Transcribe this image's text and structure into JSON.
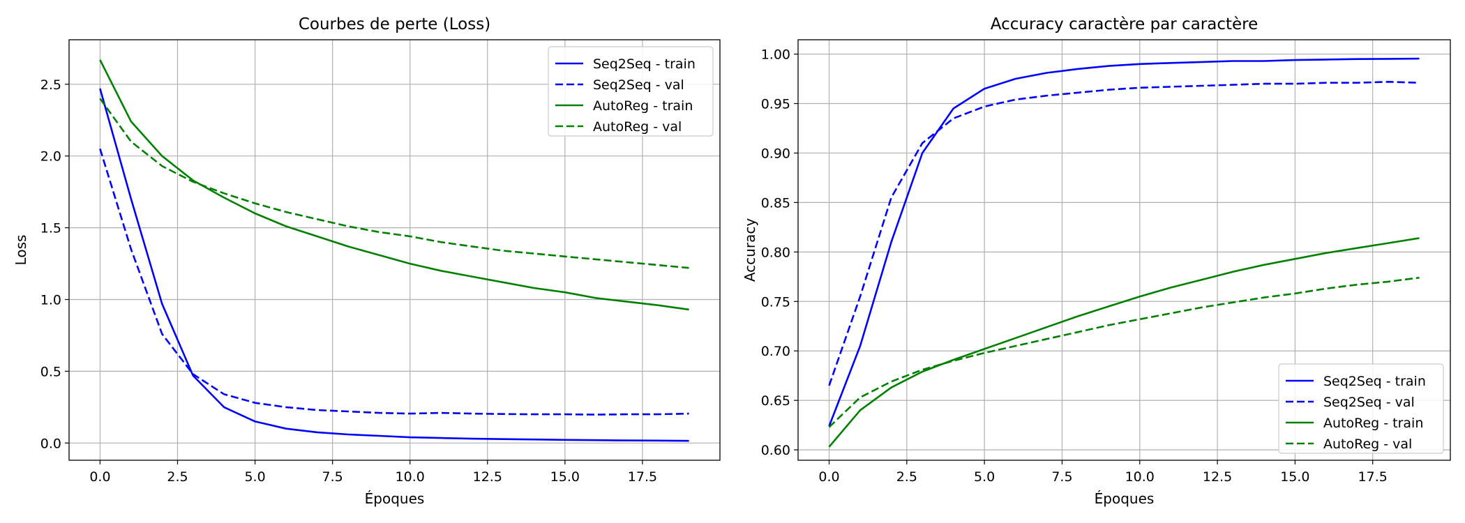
{
  "chart_data": [
    {
      "type": "line",
      "title": "Courbes de perte (Loss)",
      "xlabel": "Époques",
      "ylabel": "Loss",
      "xlim": [
        -1,
        20
      ],
      "ylim": [
        -0.12,
        2.81
      ],
      "xticks": [
        0.0,
        2.5,
        5.0,
        7.5,
        10.0,
        12.5,
        15.0,
        17.5
      ],
      "xtick_labels": [
        "0.0",
        "2.5",
        "5.0",
        "7.5",
        "10.0",
        "12.5",
        "15.0",
        "17.5"
      ],
      "yticks": [
        0.0,
        0.5,
        1.0,
        1.5,
        2.0,
        2.5
      ],
      "ytick_labels": [
        "0.0",
        "0.5",
        "1.0",
        "1.5",
        "2.0",
        "2.5"
      ],
      "grid": true,
      "legend_position": "top-right",
      "x": [
        0,
        1,
        2,
        3,
        4,
        5,
        6,
        7,
        8,
        9,
        10,
        11,
        12,
        13,
        14,
        15,
        16,
        17,
        18,
        19
      ],
      "series": [
        {
          "name": "Seq2Seq - train",
          "color": "#0000ff",
          "dash": "solid",
          "values": [
            2.47,
            1.7,
            0.97,
            0.47,
            0.25,
            0.15,
            0.1,
            0.075,
            0.06,
            0.05,
            0.04,
            0.035,
            0.03,
            0.027,
            0.025,
            0.022,
            0.02,
            0.018,
            0.017,
            0.015
          ]
        },
        {
          "name": "Seq2Seq - val",
          "color": "#0000ff",
          "dash": "dashed",
          "values": [
            2.05,
            1.35,
            0.76,
            0.48,
            0.34,
            0.28,
            0.25,
            0.23,
            0.22,
            0.21,
            0.205,
            0.21,
            0.205,
            0.202,
            0.2,
            0.2,
            0.198,
            0.2,
            0.2,
            0.205
          ]
        },
        {
          "name": "AutoReg - train",
          "color": "#008000",
          "dash": "solid",
          "values": [
            2.67,
            2.24,
            2.0,
            1.83,
            1.71,
            1.6,
            1.51,
            1.44,
            1.37,
            1.31,
            1.25,
            1.2,
            1.16,
            1.12,
            1.08,
            1.05,
            1.01,
            0.985,
            0.96,
            0.93
          ]
        },
        {
          "name": "AutoReg - val",
          "color": "#008000",
          "dash": "dashed",
          "values": [
            2.4,
            2.1,
            1.93,
            1.82,
            1.74,
            1.67,
            1.61,
            1.56,
            1.51,
            1.47,
            1.44,
            1.4,
            1.37,
            1.34,
            1.32,
            1.3,
            1.28,
            1.26,
            1.24,
            1.22
          ]
        }
      ]
    },
    {
      "type": "line",
      "title": "Accuracy caractère par caractère",
      "xlabel": "Époques",
      "ylabel": "Accuracy",
      "xlim": [
        -1,
        20
      ],
      "ylim": [
        0.5895,
        1.0145
      ],
      "xticks": [
        0.0,
        2.5,
        5.0,
        7.5,
        10.0,
        12.5,
        15.0,
        17.5
      ],
      "xtick_labels": [
        "0.0",
        "2.5",
        "5.0",
        "7.5",
        "10.0",
        "12.5",
        "15.0",
        "17.5"
      ],
      "yticks": [
        0.6,
        0.65,
        0.7,
        0.75,
        0.8,
        0.85,
        0.9,
        0.95,
        1.0
      ],
      "ytick_labels": [
        "0.60",
        "0.65",
        "0.70",
        "0.75",
        "0.80",
        "0.85",
        "0.90",
        "0.95",
        "1.00"
      ],
      "grid": true,
      "legend_position": "bottom-right",
      "x": [
        0,
        1,
        2,
        3,
        4,
        5,
        6,
        7,
        8,
        9,
        10,
        11,
        12,
        13,
        14,
        15,
        16,
        17,
        18,
        19
      ],
      "series": [
        {
          "name": "Seq2Seq - train",
          "color": "#0000ff",
          "dash": "solid",
          "values": [
            0.624,
            0.705,
            0.81,
            0.9,
            0.945,
            0.965,
            0.975,
            0.981,
            0.985,
            0.988,
            0.99,
            0.991,
            0.992,
            0.993,
            0.993,
            0.994,
            0.9945,
            0.995,
            0.9952,
            0.9955
          ]
        },
        {
          "name": "Seq2Seq - val",
          "color": "#0000ff",
          "dash": "dashed",
          "values": [
            0.665,
            0.755,
            0.855,
            0.91,
            0.935,
            0.947,
            0.954,
            0.958,
            0.961,
            0.964,
            0.966,
            0.967,
            0.968,
            0.969,
            0.97,
            0.97,
            0.971,
            0.971,
            0.972,
            0.971
          ]
        },
        {
          "name": "AutoReg - train",
          "color": "#008000",
          "dash": "solid",
          "values": [
            0.603,
            0.64,
            0.663,
            0.679,
            0.691,
            0.702,
            0.713,
            0.724,
            0.735,
            0.745,
            0.755,
            0.764,
            0.772,
            0.78,
            0.787,
            0.793,
            0.799,
            0.804,
            0.809,
            0.814
          ]
        },
        {
          "name": "AutoReg - val",
          "color": "#008000",
          "dash": "dashed",
          "values": [
            0.623,
            0.653,
            0.669,
            0.681,
            0.69,
            0.698,
            0.705,
            0.712,
            0.719,
            0.726,
            0.732,
            0.738,
            0.744,
            0.749,
            0.754,
            0.758,
            0.763,
            0.767,
            0.77,
            0.774
          ]
        }
      ]
    }
  ]
}
